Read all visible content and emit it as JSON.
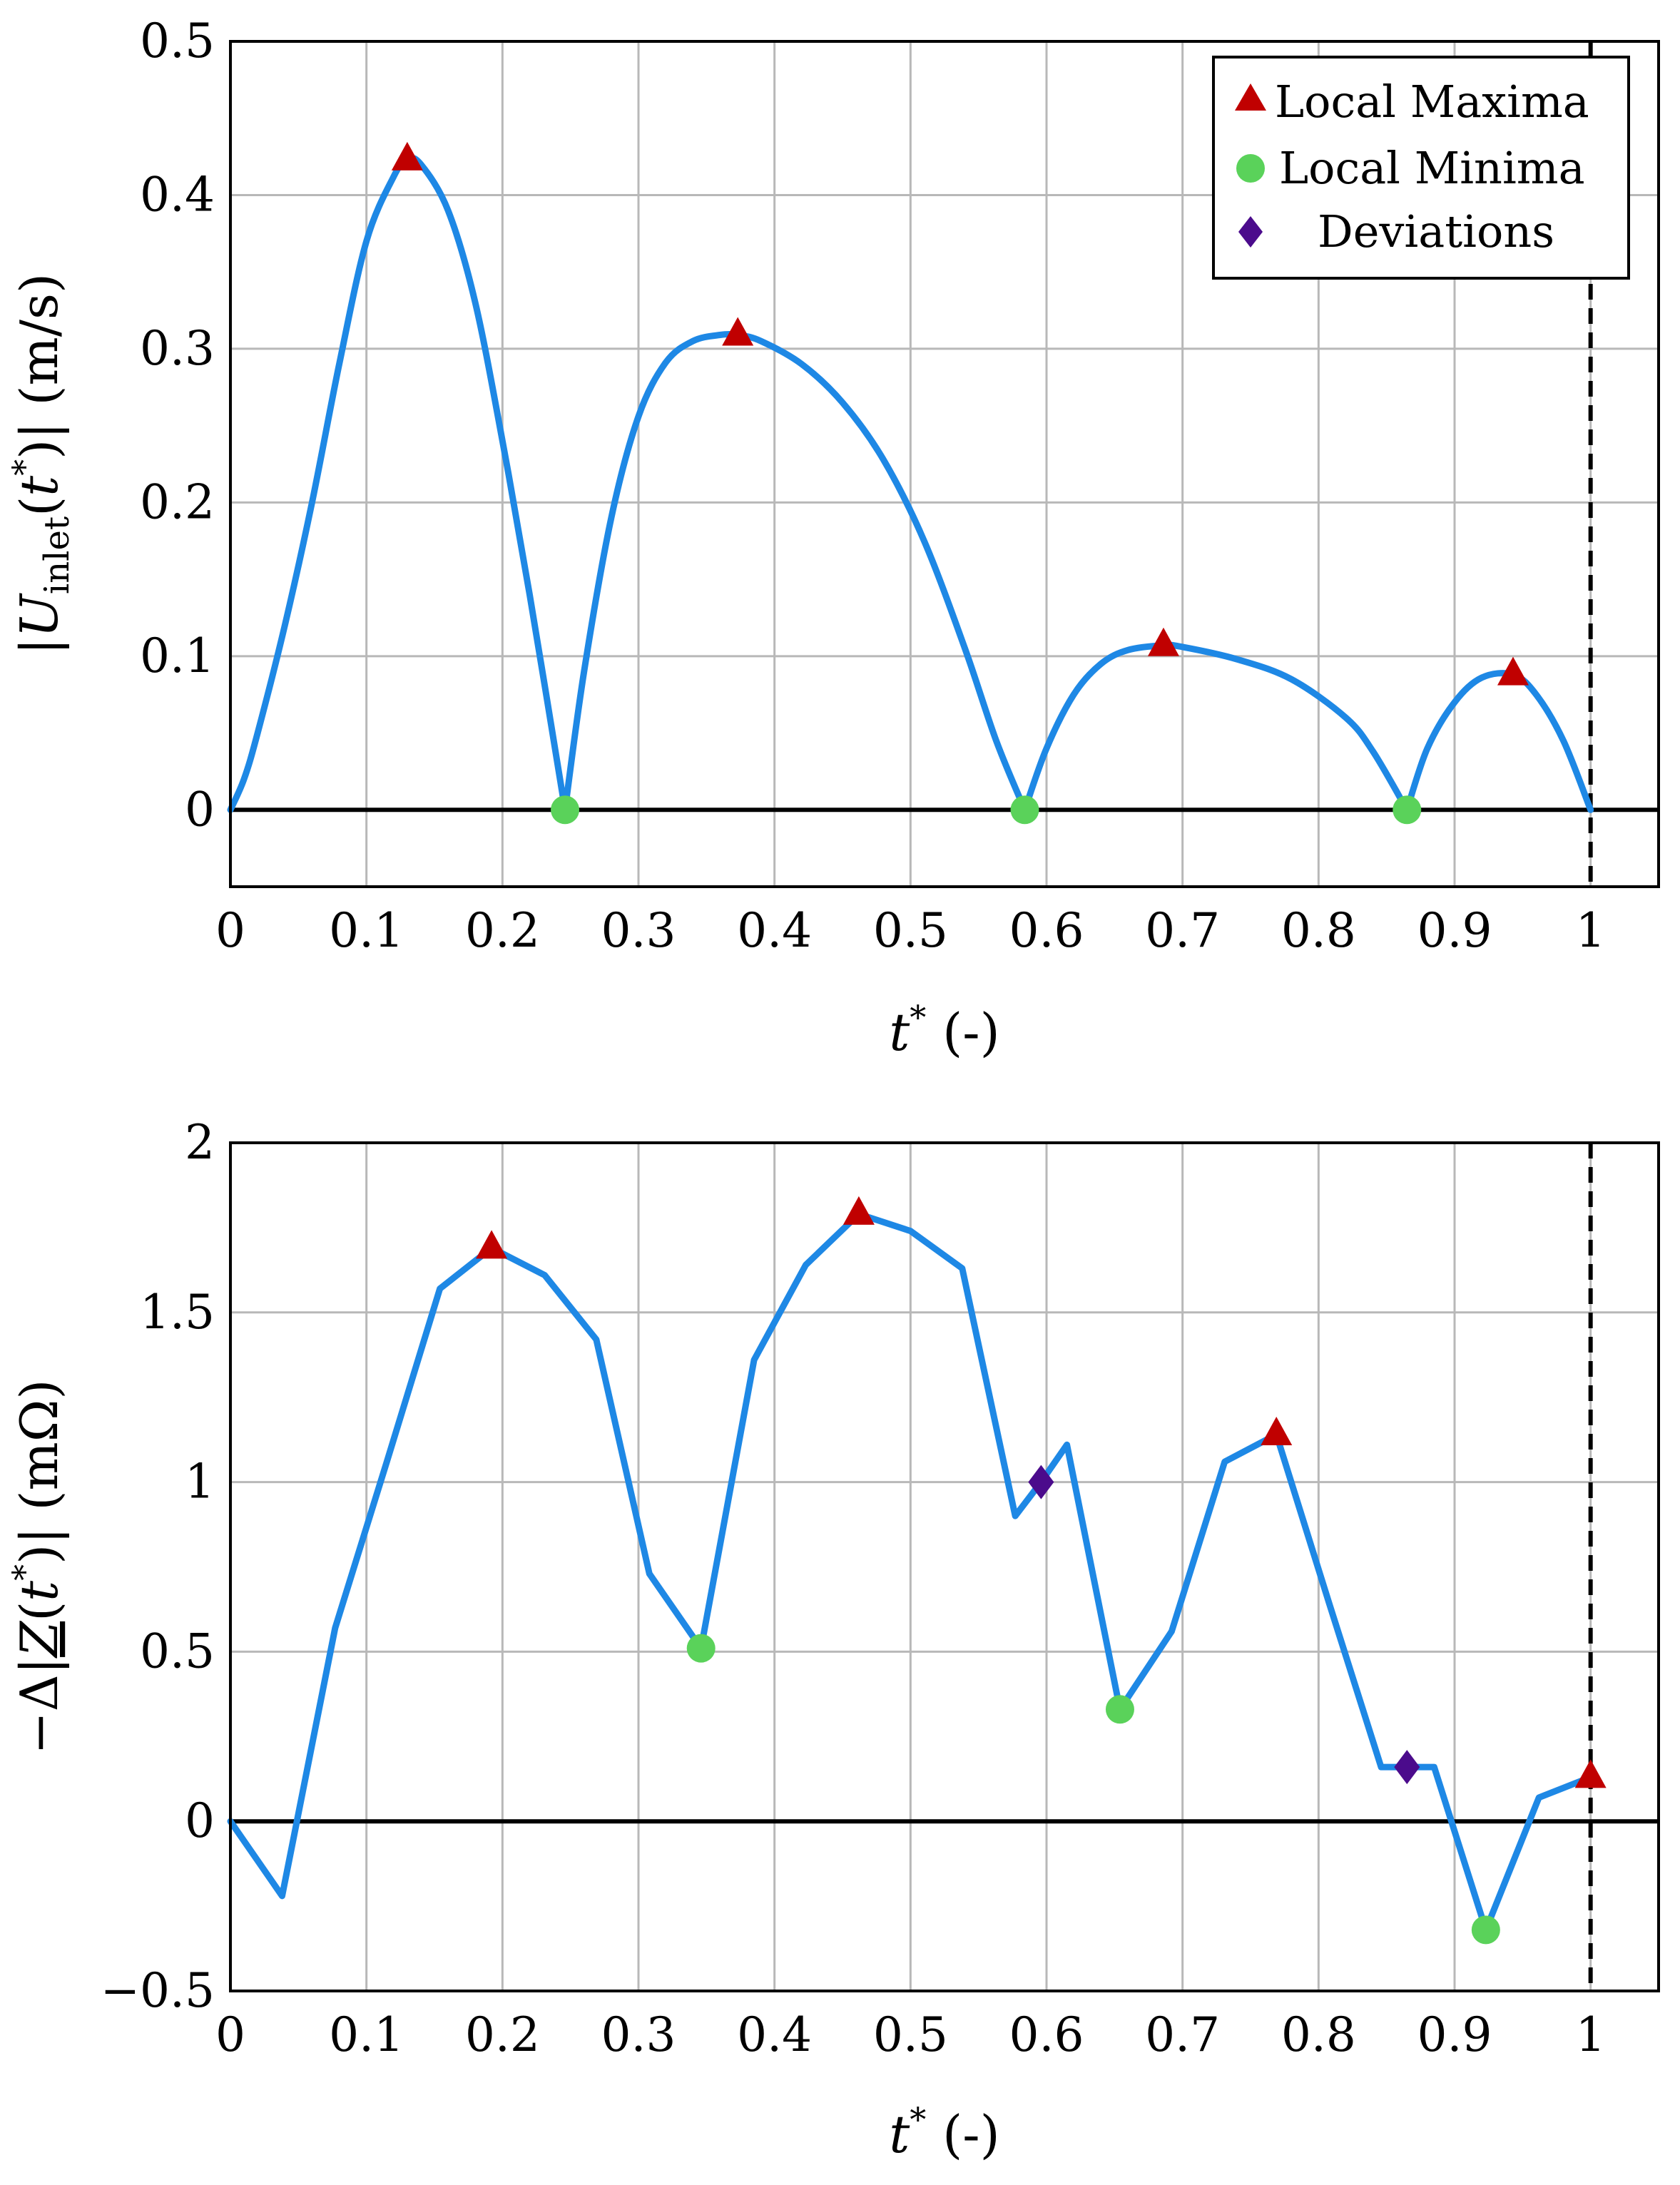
{
  "chart_data": [
    {
      "type": "line",
      "xlabel": "t* (-)",
      "ylabel": "|U_inlet(t*)| (m/s)",
      "xlim": [
        0,
        1.05
      ],
      "ylim": [
        -0.05,
        0.5
      ],
      "xticks": [
        0,
        0.1,
        0.2,
        0.3,
        0.4,
        0.5,
        0.6,
        0.7,
        0.8,
        0.9,
        1
      ],
      "xtick_labels": [
        "0",
        "0.1",
        "0.2",
        "0.3",
        "0.4",
        "0.5",
        "0.6",
        "0.7",
        "0.8",
        "0.9",
        "1"
      ],
      "yticks": [
        0,
        0.1,
        0.2,
        0.3,
        0.4,
        0.5
      ],
      "ytick_labels": [
        "0",
        "0.1",
        "0.2",
        "0.3",
        "0.4",
        "0.5"
      ],
      "grid": true,
      "zero_line": 0,
      "vertical_dashed_line": 1,
      "series_color": "#1e88e5",
      "x": [
        0,
        0.01,
        0.02,
        0.04,
        0.06,
        0.08,
        0.1,
        0.12,
        0.13,
        0.14,
        0.16,
        0.18,
        0.2,
        0.22,
        0.246,
        0.26,
        0.28,
        0.3,
        0.32,
        0.34,
        0.36,
        0.373,
        0.39,
        0.42,
        0.45,
        0.48,
        0.51,
        0.54,
        0.563,
        0.584,
        0.6,
        0.62,
        0.64,
        0.66,
        0.686,
        0.7,
        0.74,
        0.78,
        0.82,
        0.84,
        0.865,
        0.88,
        0.9,
        0.92,
        0.943,
        0.96,
        0.98,
        1.0
      ],
      "y": [
        0,
        0.02,
        0.05,
        0.12,
        0.2,
        0.29,
        0.37,
        0.412,
        0.423,
        0.42,
        0.39,
        0.33,
        0.24,
        0.14,
        0.0,
        0.09,
        0.19,
        0.256,
        0.291,
        0.305,
        0.309,
        0.309,
        0.305,
        0.29,
        0.265,
        0.228,
        0.175,
        0.105,
        0.045,
        0.0,
        0.04,
        0.075,
        0.095,
        0.104,
        0.107,
        0.106,
        0.098,
        0.085,
        0.06,
        0.038,
        0.0,
        0.04,
        0.07,
        0.086,
        0.088,
        0.075,
        0.045,
        0.0
      ],
      "maxima": [
        [
          0.13,
          0.423
        ],
        [
          0.373,
          0.309
        ],
        [
          0.686,
          0.107
        ],
        [
          0.943,
          0.088
        ]
      ],
      "minima": [
        [
          0.246,
          0.0
        ],
        [
          0.584,
          0.0
        ],
        [
          0.865,
          0.0
        ]
      ],
      "deviations": [],
      "legend": {
        "position": "top-right",
        "entries": [
          {
            "label": "Local Maxima",
            "color": "#c00000",
            "marker": "triangle"
          },
          {
            "label": "Local Minima",
            "color": "#5ad25a",
            "marker": "circle"
          },
          {
            "label": "Deviations",
            "color": "#4b0b8c",
            "marker": "diamond"
          }
        ]
      }
    },
    {
      "type": "line",
      "xlabel": "t* (-)",
      "ylabel": "−Δ|Z(t*)| (mΩ)",
      "xlim": [
        0,
        1.05
      ],
      "ylim": [
        -0.5,
        2
      ],
      "xticks": [
        0,
        0.1,
        0.2,
        0.3,
        0.4,
        0.5,
        0.6,
        0.7,
        0.8,
        0.9,
        1
      ],
      "xtick_labels": [
        "0",
        "0.1",
        "0.2",
        "0.3",
        "0.4",
        "0.5",
        "0.6",
        "0.7",
        "0.8",
        "0.9",
        "1"
      ],
      "yticks": [
        -0.5,
        0,
        0.5,
        1,
        1.5,
        2
      ],
      "ytick_labels": [
        "−0.5",
        "0",
        "0.5",
        "1",
        "1.5",
        "2"
      ],
      "grid": true,
      "zero_line": 0,
      "vertical_dashed_line": 1,
      "series_color": "#1e88e5",
      "x": [
        0,
        0.038,
        0.077,
        0.115,
        0.154,
        0.192,
        0.231,
        0.269,
        0.308,
        0.346,
        0.385,
        0.423,
        0.462,
        0.5,
        0.538,
        0.577,
        0.596,
        0.615,
        0.654,
        0.692,
        0.731,
        0.769,
        0.808,
        0.846,
        0.865,
        0.885,
        0.923,
        0.962,
        1.0
      ],
      "y": [
        0,
        -0.22,
        0.57,
        1.06,
        1.57,
        1.69,
        1.61,
        1.42,
        0.73,
        0.51,
        1.36,
        1.64,
        1.79,
        1.74,
        1.63,
        0.9,
        1.0,
        1.11,
        0.33,
        0.56,
        1.06,
        1.14,
        0.64,
        0.16,
        0.16,
        0.16,
        -0.32,
        0.07,
        0.13
      ],
      "maxima": [
        [
          0.192,
          1.69
        ],
        [
          0.462,
          1.79
        ],
        [
          0.769,
          1.14
        ],
        [
          1.0,
          0.13
        ]
      ],
      "minima": [
        [
          0.346,
          0.51
        ],
        [
          0.654,
          0.33
        ],
        [
          0.923,
          -0.32
        ]
      ],
      "deviations": [
        [
          0.596,
          1.0
        ],
        [
          0.865,
          0.16
        ]
      ]
    }
  ]
}
